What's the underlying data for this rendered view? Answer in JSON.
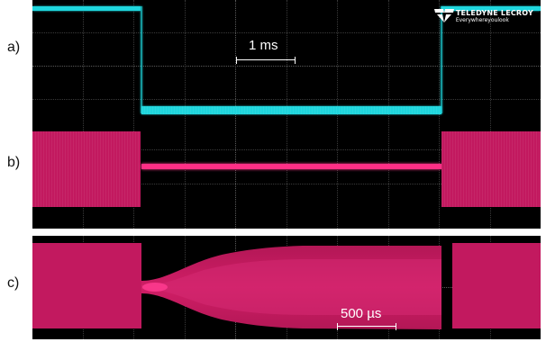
{
  "labels": {
    "a": "a)",
    "b": "b)",
    "c": "c)"
  },
  "scale_top": "1 ms",
  "scale_bottom": "500 µs",
  "brand": {
    "name": "TELEDYNE LECROY",
    "tagline": "Everywhereyoulook"
  },
  "colors": {
    "cyan": "#1fd6dd",
    "magenta": "#c2195f",
    "magenta_bright": "#ff2f86",
    "grid": "#3a3a3a"
  }
}
